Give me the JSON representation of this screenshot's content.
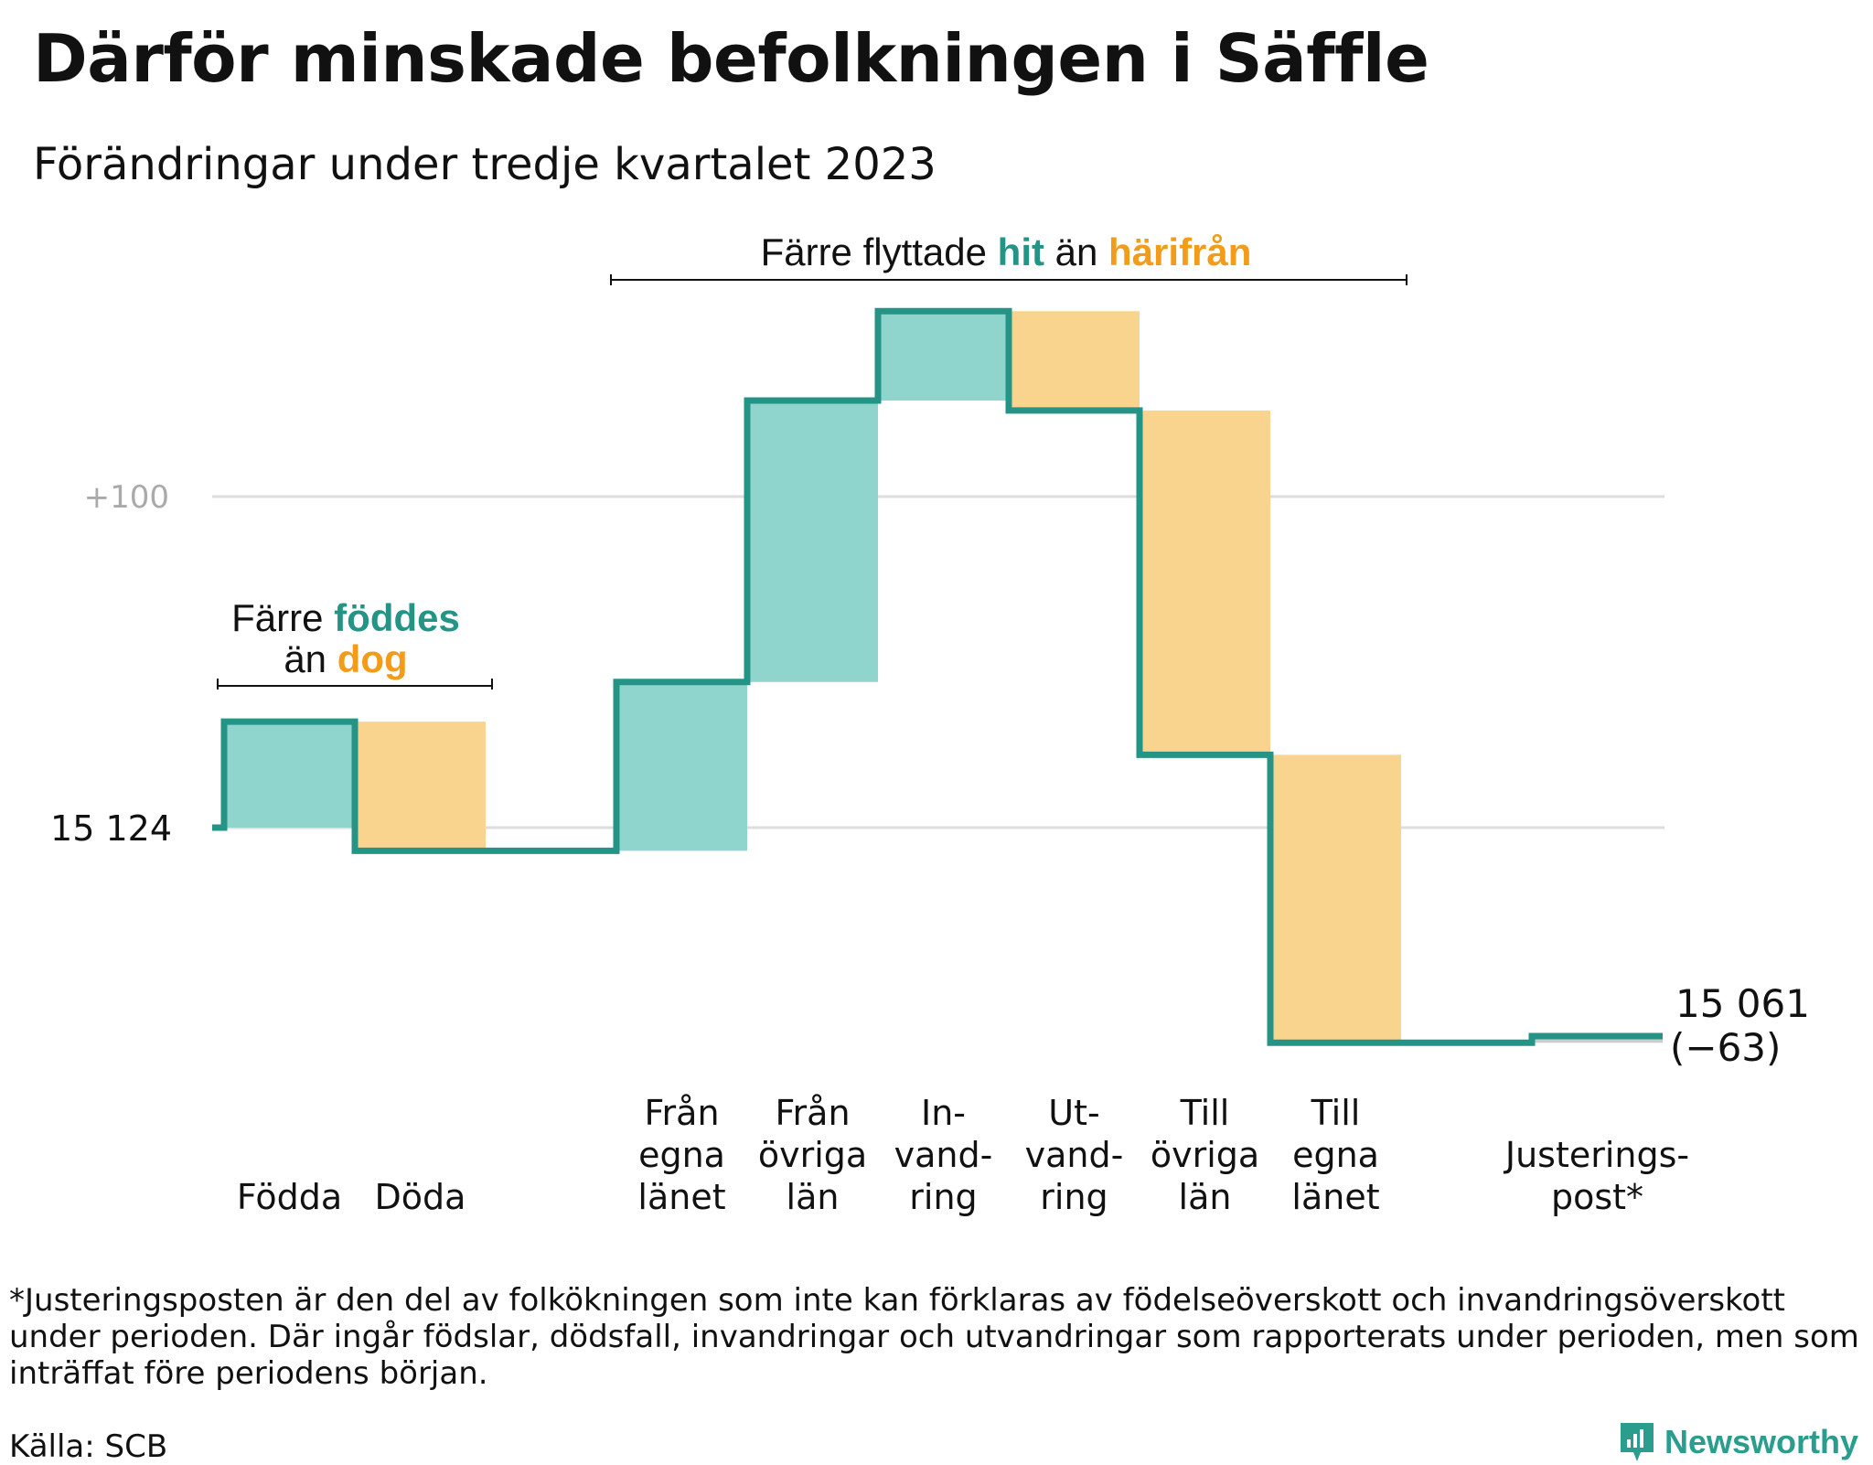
{
  "title": "Därför minskade befolkningen i Säffle",
  "subtitle": "Förändringar under tredje kvartalet 2023",
  "colors": {
    "inflow": "#8fd5cd",
    "outflow": "#f9d48e",
    "line": "#239485",
    "adjust": "#cccccc",
    "grid": "#dddddd",
    "accent_teal": "#239485",
    "accent_orange": "#f39c1a"
  },
  "chart_data": {
    "type": "waterfall",
    "start_value": 15124,
    "start_label": "15  124",
    "end_label_value": "15 061",
    "end_label_change": "(−63)",
    "gridlines": [
      {
        "value": 15124,
        "label": ""
      },
      {
        "value": 15224,
        "label": "+100"
      }
    ],
    "steps": [
      {
        "label_lines": [
          "Födda"
        ],
        "change": 32,
        "kind": "in"
      },
      {
        "label_lines": [
          "Döda"
        ],
        "change": -39,
        "kind": "out"
      },
      {
        "label_lines": [
          "Från",
          "egna",
          "länet"
        ],
        "change": 51,
        "kind": "in"
      },
      {
        "label_lines": [
          "Från",
          "övriga",
          "län"
        ],
        "change": 85,
        "kind": "in"
      },
      {
        "label_lines": [
          "In-",
          "vand-",
          "ring"
        ],
        "change": 27,
        "kind": "in"
      },
      {
        "label_lines": [
          "Ut-",
          "vand-",
          "ring"
        ],
        "change": -30,
        "kind": "out"
      },
      {
        "label_lines": [
          "Till",
          "övriga",
          "län"
        ],
        "change": -104,
        "kind": "out"
      },
      {
        "label_lines": [
          "Till",
          "egna",
          "länet"
        ],
        "change": -87,
        "kind": "out"
      },
      {
        "label_lines": [
          "Justerings-",
          "post*"
        ],
        "change": 2,
        "kind": "adjust"
      }
    ],
    "annotations": [
      {
        "parts": [
          {
            "text": "Färre ",
            "color": "plain"
          },
          {
            "text": "föddes",
            "color": "teal"
          }
        ],
        "line2": [
          {
            "text": "än ",
            "color": "plain"
          },
          {
            "text": "dog",
            "color": "orange"
          }
        ]
      },
      {
        "parts": [
          {
            "text": "Färre flyttade ",
            "color": "plain"
          },
          {
            "text": "hit",
            "color": "teal"
          },
          {
            "text": " än ",
            "color": "plain"
          },
          {
            "text": "härifrån",
            "color": "orange"
          }
        ]
      }
    ]
  },
  "footnote": "*Justeringsposten är den del av folkökningen som inte kan förklaras av födelseöverskott och invandringsöverskott under perioden. Där ingår födslar, dödsfall, invandringar och utvandringar som rapporterats under perioden, men som inträffat före periodens början.",
  "source": "Källa: SCB",
  "brand": "Newsworthy"
}
